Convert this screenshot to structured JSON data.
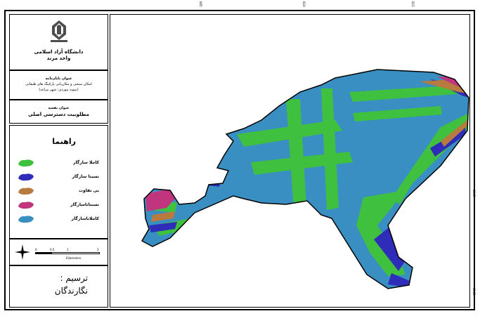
{
  "university": {
    "name": "دانشگاه آزاد اسلامی",
    "branch": "واحد مرند"
  },
  "thesis": {
    "heading": "عنوان پایان‌نامه",
    "line1": "امکان سنجی و مکان‌یابی پارکینگ های طبقاتی",
    "line2": "(نمونه موردی: شهر مراغه)"
  },
  "map_title": {
    "heading": "عنوان نقشه",
    "value": "مطلوبیت دسترسی اصلی"
  },
  "legend": {
    "title": "راهنما",
    "items": [
      {
        "label": "کاملا سازگار",
        "color": "#3fc13f",
        "icon": "green-blob-icon"
      },
      {
        "label": "نسبتا سازگار",
        "color": "#2e2cb8",
        "icon": "blue-blob-icon"
      },
      {
        "label": "بی تفاوت",
        "color": "#b87a3e",
        "icon": "brown-blob-icon"
      },
      {
        "label": "نسبتاناسازگار",
        "color": "#c0357e",
        "icon": "magenta-blob-icon"
      },
      {
        "label": "کاملاناسازگار",
        "color": "#3a8fc2",
        "icon": "teal-blob-icon"
      }
    ]
  },
  "scale": {
    "icon": "north-arrow-icon",
    "labels": [
      "0",
      "0.5",
      "1",
      "2"
    ],
    "unit": "Kilometers"
  },
  "credits": {
    "heading": "ترسیم :",
    "value": "نگارندگان"
  },
  "ticks": {
    "top": [
      "605",
      "610",
      "615"
    ],
    "right": [
      "4145",
      "4140"
    ]
  },
  "colors": {
    "green": "#3fc13f",
    "blue": "#2e2cb8",
    "brown": "#b87a3e",
    "magenta": "#c0357e",
    "teal": "#3a8fc2"
  }
}
